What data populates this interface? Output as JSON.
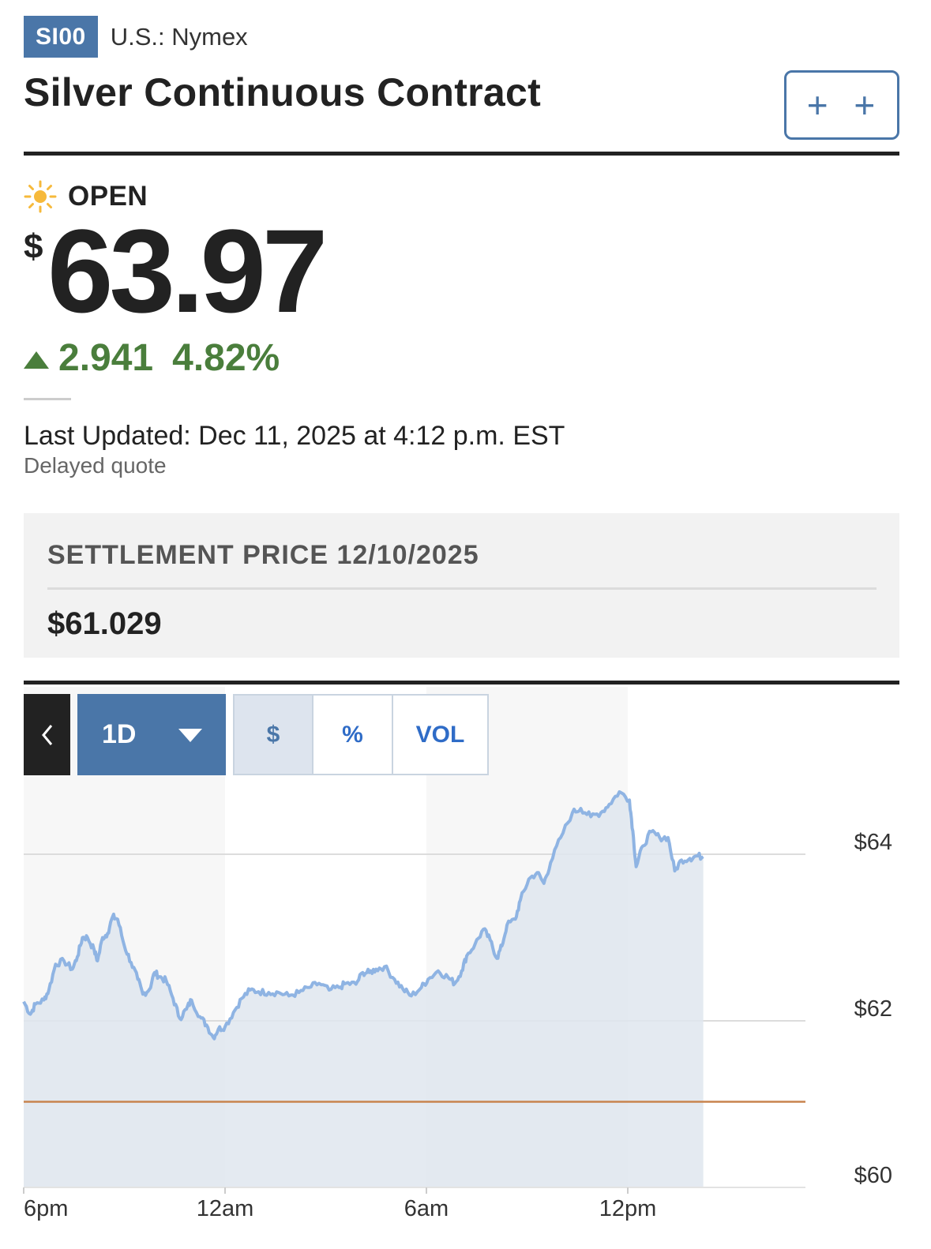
{
  "ticker": "SI00",
  "exchange": "U.S.: Nymex",
  "title": "Silver Continuous Contract",
  "watch_button": "+ +",
  "market_status": "OPEN",
  "price": {
    "currency": "$",
    "value": "63.97",
    "change": "2.941",
    "change_percent": "4.82%",
    "direction": "up"
  },
  "last_updated": "Last Updated: Dec 11, 2025 at 4:12 p.m. EST",
  "delayed_label": "Delayed quote",
  "settlement": {
    "label": "SETTLEMENT PRICE 12/10/2025",
    "value": "$61.029"
  },
  "chart_controls": {
    "back_icon": "chevron-left-icon",
    "range": "1D",
    "modes": [
      "$",
      "%",
      "VOL"
    ],
    "active_mode": "$"
  },
  "colors": {
    "accent": "#4a76a8",
    "positive": "#4a7e3c",
    "line": "#8fb4e3",
    "area": "#dfe6ee",
    "settlement_line": "#c8844e",
    "sun_icon": "#f6b93b"
  },
  "chart_data": {
    "type": "area",
    "x_ticks": [
      "6pm",
      "12am",
      "6am",
      "12pm"
    ],
    "y_ticks": [
      "$64",
      "$62",
      "$60"
    ],
    "ylim": [
      60,
      64
    ],
    "reference_line": {
      "label": "settlement",
      "value": 61.029
    },
    "grid": true,
    "series": [
      {
        "values": [
          [
            0,
            62.23
          ],
          [
            0.2,
            62.08
          ],
          [
            0.35,
            62.2
          ],
          [
            0.6,
            62.25
          ],
          [
            0.75,
            62.37
          ],
          [
            0.95,
            62.68
          ],
          [
            1.2,
            62.72
          ],
          [
            1.45,
            62.62
          ],
          [
            1.6,
            62.77
          ],
          [
            1.75,
            63.0
          ],
          [
            1.9,
            63.0
          ],
          [
            2.1,
            62.85
          ],
          [
            2.2,
            62.72
          ],
          [
            2.35,
            63.0
          ],
          [
            2.5,
            63.05
          ],
          [
            2.65,
            63.25
          ],
          [
            2.8,
            63.22
          ],
          [
            3.0,
            62.9
          ],
          [
            3.2,
            62.7
          ],
          [
            3.4,
            62.5
          ],
          [
            3.55,
            62.32
          ],
          [
            3.75,
            62.38
          ],
          [
            3.9,
            62.58
          ],
          [
            4.05,
            62.53
          ],
          [
            4.25,
            62.48
          ],
          [
            4.45,
            62.27
          ],
          [
            4.65,
            62.03
          ],
          [
            4.85,
            62.14
          ],
          [
            5.0,
            62.25
          ],
          [
            5.25,
            62.05
          ],
          [
            5.45,
            61.95
          ],
          [
            5.65,
            61.8
          ],
          [
            5.8,
            61.9
          ],
          [
            6.0,
            61.93
          ],
          [
            6.25,
            62.1
          ],
          [
            6.5,
            62.27
          ],
          [
            6.75,
            62.37
          ],
          [
            7.0,
            62.35
          ],
          [
            7.3,
            62.34
          ],
          [
            7.6,
            62.34
          ],
          [
            7.9,
            62.3
          ],
          [
            8.2,
            62.34
          ],
          [
            8.5,
            62.4
          ],
          [
            8.8,
            62.45
          ],
          [
            9.1,
            62.37
          ],
          [
            9.4,
            62.4
          ],
          [
            9.6,
            62.45
          ],
          [
            9.9,
            62.44
          ],
          [
            10.1,
            62.58
          ],
          [
            10.3,
            62.58
          ],
          [
            10.5,
            62.62
          ],
          [
            10.75,
            62.65
          ],
          [
            11.05,
            62.5
          ],
          [
            11.3,
            62.38
          ],
          [
            11.55,
            62.3
          ],
          [
            11.85,
            62.4
          ],
          [
            12.05,
            62.5
          ],
          [
            12.35,
            62.6
          ],
          [
            12.65,
            62.52
          ],
          [
            12.85,
            62.45
          ],
          [
            13.05,
            62.6
          ],
          [
            13.2,
            62.78
          ],
          [
            13.45,
            62.92
          ],
          [
            13.7,
            63.1
          ],
          [
            13.9,
            62.97
          ],
          [
            14.1,
            62.75
          ],
          [
            14.25,
            62.9
          ],
          [
            14.4,
            63.15
          ],
          [
            14.65,
            63.22
          ],
          [
            14.8,
            63.45
          ],
          [
            15.05,
            63.7
          ],
          [
            15.3,
            63.78
          ],
          [
            15.5,
            63.65
          ],
          [
            15.7,
            63.9
          ],
          [
            16.0,
            64.2
          ],
          [
            16.35,
            64.5
          ],
          [
            16.6,
            64.55
          ],
          [
            16.9,
            64.45
          ],
          [
            17.2,
            64.5
          ],
          [
            17.45,
            64.6
          ],
          [
            17.75,
            64.75
          ],
          [
            18.05,
            64.65
          ],
          [
            18.15,
            64.28
          ],
          [
            18.25,
            63.85
          ],
          [
            18.45,
            64.1
          ],
          [
            18.7,
            64.27
          ],
          [
            18.95,
            64.2
          ],
          [
            19.2,
            64.2
          ],
          [
            19.4,
            63.8
          ],
          [
            19.6,
            63.93
          ],
          [
            19.85,
            63.95
          ],
          [
            20.05,
            63.98
          ],
          [
            20.25,
            63.97
          ]
        ]
      }
    ]
  }
}
